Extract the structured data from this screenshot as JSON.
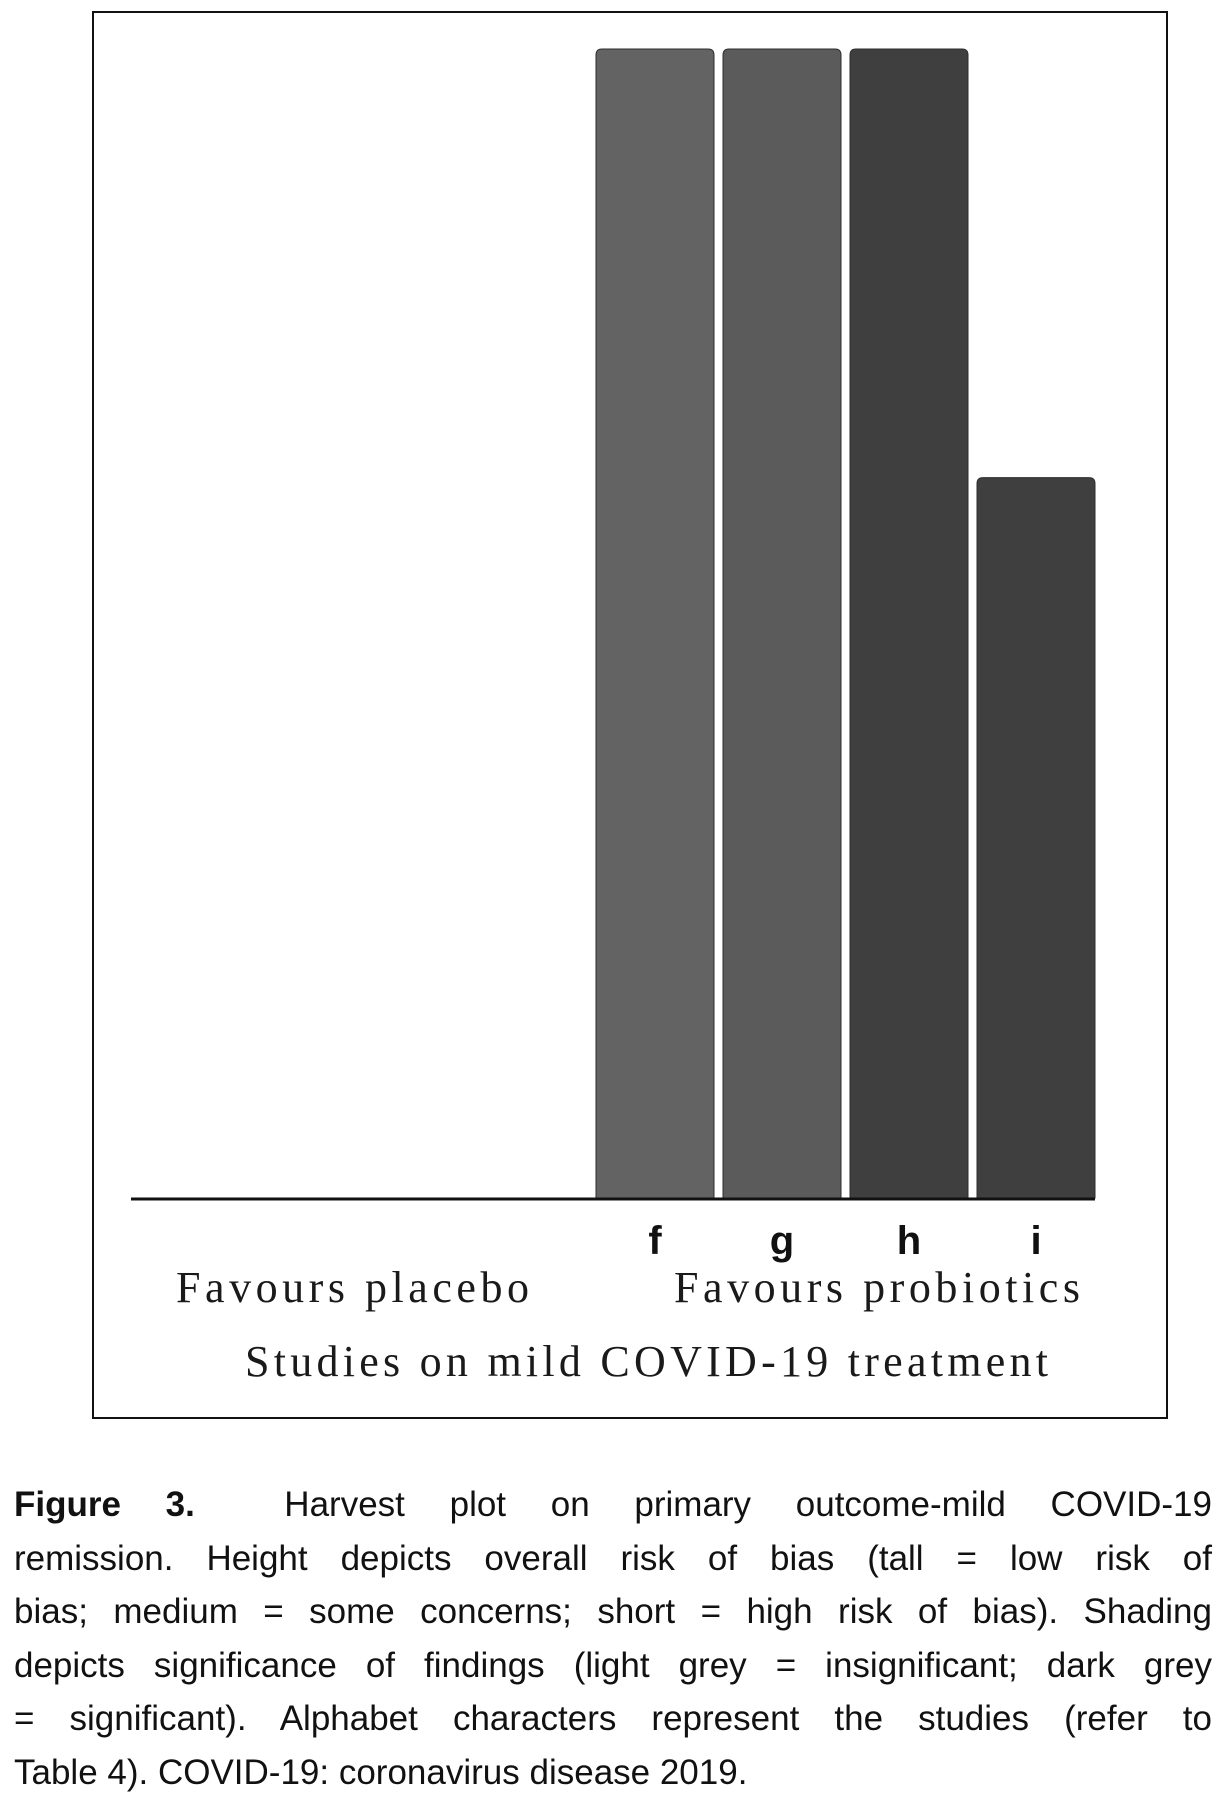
{
  "chart_data": {
    "type": "bar",
    "title": "",
    "xlabel": "Studies on mild COVID-19 treatment",
    "ylabel": "",
    "side_labels": {
      "left": "Favours placebo",
      "right": "Favours probiotics"
    },
    "categories": [
      "f",
      "g",
      "h",
      "i"
    ],
    "height_levels": {
      "tall": 3,
      "medium": 2,
      "short": 1
    },
    "risk_of_bias": [
      "tall",
      "tall",
      "tall",
      "medium"
    ],
    "values": [
      3,
      3,
      3,
      2
    ],
    "significance": [
      "insignificant",
      "insignificant",
      "significant",
      "significant"
    ],
    "colors": [
      "#636363",
      "#5b5b5b",
      "#3f3f3f",
      "#3f3f3f"
    ],
    "ylim": [
      0,
      3
    ],
    "grid": false
  },
  "caption": {
    "label": "Figure 3.",
    "lines": [
      "Harvest plot on primary outcome-mild COVID-19",
      "remission. Height depicts overall risk of bias (tall = low risk of",
      "bias; medium = some concerns; short = high risk of bias). Shading",
      "depicts significance of findings (light grey = insignificant; dark grey",
      "= significant). Alphabet characters represent the studies (refer to",
      "Table 4). COVID-19: coronavirus disease 2019."
    ]
  }
}
